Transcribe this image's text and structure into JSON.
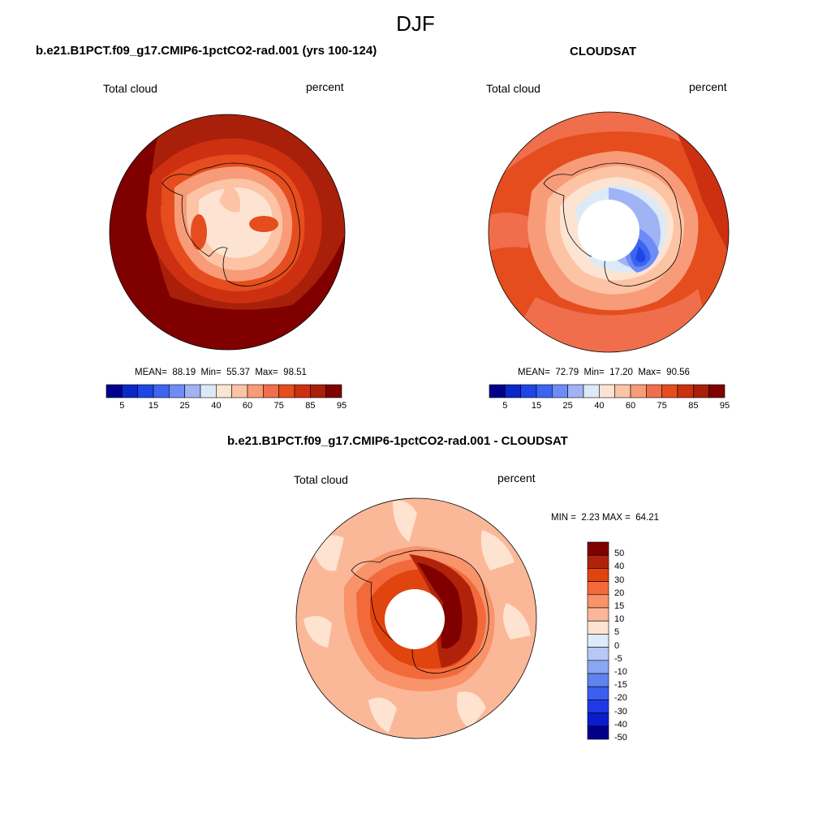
{
  "figure": {
    "title": "DJF"
  },
  "panel_model": {
    "title": "b.e21.B1PCT.f09_g17.CMIP6-1pctCO2-rad.001 (yrs 100-124)",
    "variable": "Total cloud",
    "units": "percent",
    "stats": {
      "mean_label": "MEAN=",
      "mean": "88.19",
      "min_label": "Min=",
      "min": "55.37",
      "max_label": "Max=",
      "max": "98.51"
    }
  },
  "panel_obs": {
    "title": "CLOUDSAT",
    "variable": "Total cloud",
    "units": "percent",
    "stats": {
      "mean_label": "MEAN=",
      "mean": "72.79",
      "min_label": "Min=",
      "min": "17.20",
      "max_label": "Max=",
      "max": "90.56"
    }
  },
  "panel_diff": {
    "title": "b.e21.B1PCT.f09_g17.CMIP6-1pctCO2-rad.001 - CLOUDSAT",
    "variable": "Total cloud",
    "units": "percent",
    "stats": {
      "min_label": "MIN =",
      "min": "2.23",
      "max_label": "MAX =",
      "max": "64.21"
    }
  },
  "colorbar_abs": {
    "colors": [
      "#00008b",
      "#0a28c8",
      "#1e46e6",
      "#3c64f0",
      "#6e8cf5",
      "#a0b4f5",
      "#dceaf8",
      "#fde4d2",
      "#fcc3a5",
      "#f89b78",
      "#f06e4b",
      "#e54d1e",
      "#cc3010",
      "#a8200a",
      "#800000"
    ],
    "tick_labels": [
      "5",
      "15",
      "25",
      "40",
      "60",
      "75",
      "85",
      "95"
    ]
  },
  "colorbar_diff": {
    "colors": [
      "#800000",
      "#b0230a",
      "#e0440f",
      "#f26a3c",
      "#f8936a",
      "#fbb898",
      "#fde3d0",
      "#deebf8",
      "#b6c9f5",
      "#8aa6f3",
      "#5f83ef",
      "#3c5ff0",
      "#1e3ae6",
      "#0a1ccc",
      "#00008b"
    ],
    "tick_labels": [
      "50",
      "40",
      "30",
      "20",
      "15",
      "10",
      "5",
      "0",
      "-5",
      "-10",
      "-15",
      "-20",
      "-30",
      "-40",
      "-50"
    ]
  },
  "chart_data": [
    {
      "type": "heatmap",
      "title": "b.e21.B1PCT.f09_g17.CMIP6-1pctCO2-rad.001 (yrs 100-124)",
      "variable": "Total cloud",
      "units": "percent",
      "projection": "south polar stereographic",
      "mean": 88.19,
      "min": 55.37,
      "max": 98.51,
      "contour_levels": [
        5,
        10,
        15,
        20,
        25,
        30,
        40,
        50,
        60,
        70,
        75,
        80,
        85,
        90,
        95
      ]
    },
    {
      "type": "heatmap",
      "title": "CLOUDSAT",
      "variable": "Total cloud",
      "units": "percent",
      "projection": "south polar stereographic",
      "mean": 72.79,
      "min": 17.2,
      "max": 90.56,
      "contour_levels": [
        5,
        10,
        15,
        20,
        25,
        30,
        40,
        50,
        60,
        70,
        75,
        80,
        85,
        90,
        95
      ]
    },
    {
      "type": "heatmap",
      "title": "b.e21.B1PCT.f09_g17.CMIP6-1pctCO2-rad.001 - CLOUDSAT",
      "variable": "Total cloud",
      "units": "percent",
      "projection": "south polar stereographic",
      "min": 2.23,
      "max": 64.21,
      "contour_levels": [
        -50,
        -40,
        -30,
        -20,
        -15,
        -10,
        -5,
        0,
        5,
        10,
        15,
        20,
        30,
        40,
        50
      ]
    }
  ]
}
